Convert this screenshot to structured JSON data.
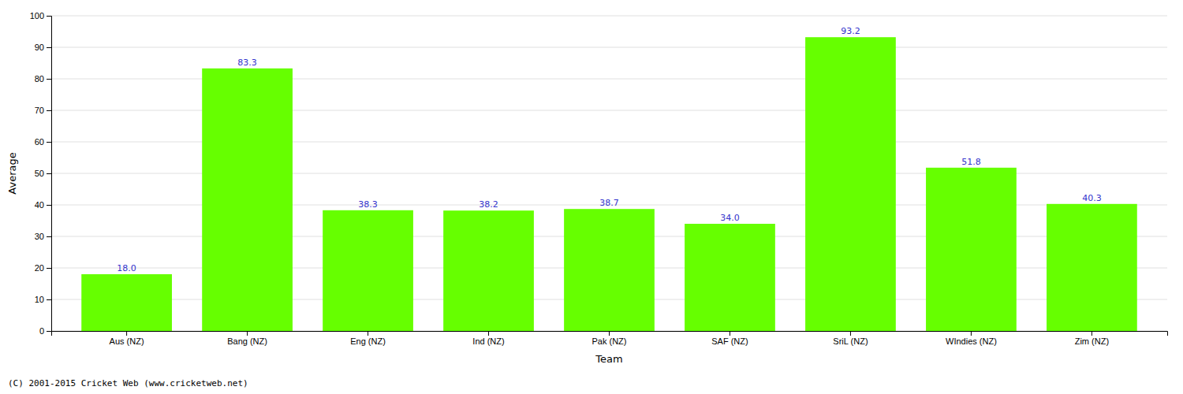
{
  "chart_data": {
    "type": "bar",
    "categories": [
      "Aus (NZ)",
      "Bang (NZ)",
      "Eng (NZ)",
      "Ind (NZ)",
      "Pak (NZ)",
      "SAF (NZ)",
      "SriL (NZ)",
      "WIndies (NZ)",
      "Zim (NZ)"
    ],
    "values": [
      18.0,
      83.3,
      38.3,
      38.2,
      38.7,
      34.0,
      93.2,
      51.8,
      40.3
    ],
    "value_labels": [
      "18.0",
      "83.3",
      "38.3",
      "38.2",
      "38.7",
      "34.0",
      "93.2",
      "51.8",
      "40.3"
    ],
    "data_labels": true,
    "color": "#66ff00",
    "x_label": "Team",
    "y_label": "Average",
    "ylim": [
      0,
      100
    ],
    "yticks": [
      0,
      10,
      20,
      30,
      40,
      50,
      60,
      70,
      80,
      90,
      100
    ],
    "grid": true,
    "annotations": [
      "(C) 2001-2015 Cricket Web (www.cricketweb.net)"
    ]
  }
}
